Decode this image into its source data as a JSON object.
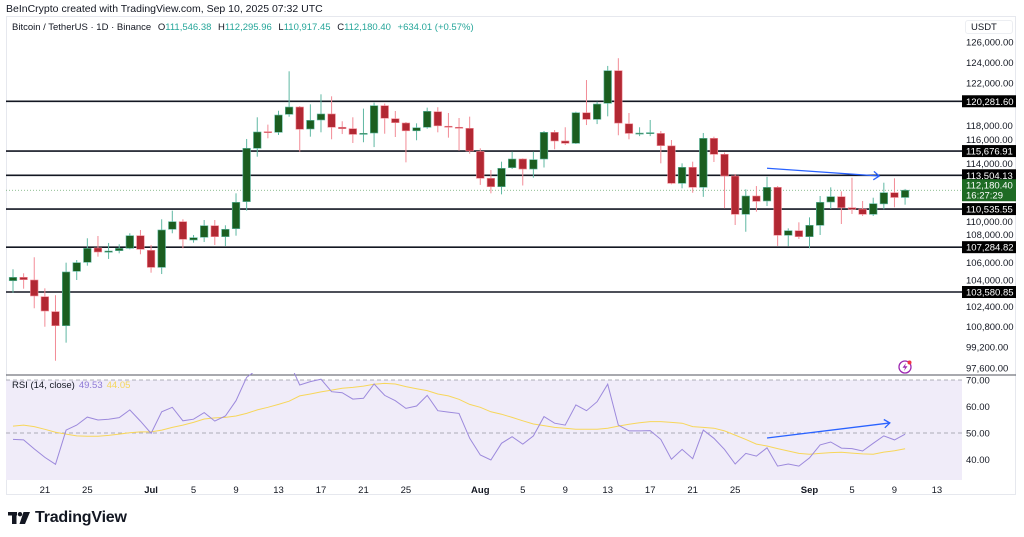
{
  "credit": "BeInCrypto created with TradingView.com, Sep 10, 2025 07:32 UTC",
  "legend": {
    "symbol": "Bitcoin / TetherUS · 1D · Binance",
    "o_label": "O",
    "o": "111,546.38",
    "h_label": "H",
    "h": "112,295.96",
    "l_label": "L",
    "l": "110,917.45",
    "c_label": "C",
    "c": "112,180.40",
    "change": "+634.01 (+0.57%)"
  },
  "currency": "USDT",
  "colors": {
    "up_body": "#1b5e20",
    "up_wick": "#5fb8a3",
    "down_body": "#b22833",
    "down_wick": "#f28b96",
    "rsi_line": "#9c89dc",
    "rsi_ma": "#f7d65a",
    "rsi_band": "#f0ecf9",
    "arrow": "#2962ff",
    "last_price": "#1e6b24",
    "level": "#131722",
    "alert_icon": "#9c27b0"
  },
  "price_axis": {
    "scale": "log",
    "ticks": [
      {
        "value": 126000,
        "label": "126,000.00"
      },
      {
        "value": 124000,
        "label": "124,000.00"
      },
      {
        "value": 122000,
        "label": "122,000.00"
      },
      {
        "value": 118000,
        "label": "118,000.00"
      },
      {
        "value": 116000,
        "label": "116,000.00"
      },
      {
        "value": 114000,
        "label": "114,000.00"
      },
      {
        "value": 110000,
        "label": "110,000.00"
      },
      {
        "value": 108000,
        "label": "108,000.00"
      },
      {
        "value": 106000,
        "label": "106,000.00"
      },
      {
        "value": 104000,
        "label": "104,000.00"
      },
      {
        "value": 102400,
        "label": "102,400.00"
      },
      {
        "value": 100800,
        "label": "100,800.00"
      },
      {
        "value": 99200,
        "label": "99,200.00"
      },
      {
        "value": 97600,
        "label": "97,600.00"
      }
    ]
  },
  "levels": [
    {
      "value": 120281.6,
      "label": "120,281.60"
    },
    {
      "value": 115676.91,
      "label": "115,676.91"
    },
    {
      "value": 113504.13,
      "label": "113,504.13"
    },
    {
      "value": 110535.55,
      "label": "110,535.55"
    },
    {
      "value": 107284.82,
      "label": "107,284.82"
    },
    {
      "value": 103580.85,
      "label": "103,580.85"
    }
  ],
  "last_price": {
    "value": 112180.4,
    "label": "112,180.40",
    "countdown": "16:27:29"
  },
  "x_axis": {
    "ticks": [
      {
        "date": "2025-06-21",
        "label": "21",
        "bold": false
      },
      {
        "date": "2025-06-25",
        "label": "25",
        "bold": false
      },
      {
        "date": "2025-07-01",
        "label": "Jul",
        "bold": true
      },
      {
        "date": "2025-07-05",
        "label": "5",
        "bold": false
      },
      {
        "date": "2025-07-09",
        "label": "9",
        "bold": false
      },
      {
        "date": "2025-07-13",
        "label": "13",
        "bold": false
      },
      {
        "date": "2025-07-17",
        "label": "17",
        "bold": false
      },
      {
        "date": "2025-07-21",
        "label": "21",
        "bold": false
      },
      {
        "date": "2025-07-25",
        "label": "25",
        "bold": false
      },
      {
        "date": "2025-08-01",
        "label": "Aug",
        "bold": true
      },
      {
        "date": "2025-08-05",
        "label": "5",
        "bold": false
      },
      {
        "date": "2025-08-09",
        "label": "9",
        "bold": false
      },
      {
        "date": "2025-08-13",
        "label": "13",
        "bold": false
      },
      {
        "date": "2025-08-17",
        "label": "17",
        "bold": false
      },
      {
        "date": "2025-08-21",
        "label": "21",
        "bold": false
      },
      {
        "date": "2025-08-25",
        "label": "25",
        "bold": false
      },
      {
        "date": "2025-09-01",
        "label": "Sep",
        "bold": true
      },
      {
        "date": "2025-09-05",
        "label": "5",
        "bold": false
      },
      {
        "date": "2025-09-09",
        "label": "9",
        "bold": false
      },
      {
        "date": "2025-09-13",
        "label": "13",
        "bold": false
      }
    ]
  },
  "rsi": {
    "title": "RSI (14, close)",
    "value": "49.53",
    "ma_value": "44.05",
    "axis_ticks": [
      {
        "value": 70,
        "label": "70.00"
      },
      {
        "value": 60,
        "label": "60.00"
      },
      {
        "value": 50,
        "label": "50.00"
      },
      {
        "value": 40,
        "label": "40.00"
      }
    ],
    "band": [
      30,
      70
    ],
    "dashed_levels": [
      70,
      50
    ],
    "values": [
      47.6,
      47.4,
      44.0,
      40.8,
      38.2,
      51.1,
      53.0,
      56.0,
      54.9,
      55.2,
      55.8,
      58.7,
      54.5,
      49.9,
      58.0,
      59.7,
      54.6,
      55.2,
      57.7,
      54.5,
      56.4,
      62.2,
      71.0,
      74,
      74,
      76,
      77,
      68.1,
      69.4,
      70.3,
      65.6,
      65.2,
      62.8,
      63.1,
      68.5,
      64.2,
      62.2,
      59.3,
      60.2,
      64.2,
      58.4,
      57.9,
      57.4,
      48.0,
      41.7,
      39.8,
      46.1,
      48.6,
      45.8,
      48.9,
      56.2,
      53.7,
      53.0,
      60.6,
      58.4,
      61.8,
      68.4,
      53.0,
      50.8,
      50.8,
      50.9,
      47.6,
      40.1,
      43.8,
      40.3,
      51.1,
      48.0,
      43.8,
      38.3,
      42.3,
      41.3,
      44.4,
      37.5,
      38.3,
      37.5,
      40.6,
      45.5,
      46.6,
      44.3,
      44.1,
      43.2,
      46.1,
      48.9,
      47.4,
      49.53
    ],
    "ma": [
      52.6,
      53.0,
      52.4,
      51.4,
      50.3,
      49.6,
      48.9,
      48.8,
      48.8,
      49.1,
      49.6,
      50.1,
      50.4,
      50.4,
      51.1,
      52.1,
      53.0,
      54.0,
      55.3,
      55.7,
      55.9,
      56.4,
      57.4,
      58.7,
      59.7,
      60.8,
      62.0,
      64.0,
      64.7,
      65.5,
      66.2,
      66.9,
      67.2,
      67.7,
      68.4,
      68.7,
      68.5,
      67.5,
      66.7,
      66.0,
      64.7,
      64.0,
      62.7,
      60.8,
      59.7,
      58.0,
      57.1,
      55.9,
      54.6,
      53.4,
      52.8,
      52.1,
      51.8,
      51.4,
      51.4,
      51.4,
      51.8,
      52.6,
      53.3,
      53.9,
      54.3,
      54.3,
      54.0,
      53.7,
      52.4,
      52.1,
      51.8,
      50.8,
      49.2,
      47.6,
      45.8,
      45.1,
      44.1,
      43.2,
      42.3,
      42.0,
      42.3,
      42.6,
      42.7,
      42.4,
      42.1,
      42.0,
      42.8,
      43.3,
      44.05
    ]
  },
  "arrows": [
    {
      "pane": "price",
      "from": {
        "date": "2025-08-28",
        "value": 114130
      },
      "to": {
        "date": "2025-09-07",
        "value": 113440
      }
    },
    {
      "pane": "rsi",
      "from": {
        "date": "2025-08-28",
        "value": 48.1
      },
      "to": {
        "date": "2025-09-08",
        "value": 53.8
      }
    }
  ],
  "logo_text": "TradingView",
  "chart_data": {
    "type": "candlestick",
    "title": "Bitcoin / TetherUS · 1D · Binance",
    "ylim": [
      97000,
      127000
    ],
    "yscale": "log",
    "fields": [
      "date",
      "open",
      "high",
      "low",
      "close"
    ],
    "candles": [
      [
        "2025-06-18",
        104500,
        105440,
        103520,
        104780
      ],
      [
        "2025-06-19",
        104780,
        105110,
        103850,
        104585
      ],
      [
        "2025-06-20",
        104560,
        106440,
        102270,
        103260
      ],
      [
        "2025-06-21",
        103200,
        103880,
        100800,
        102050
      ],
      [
        "2025-06-22",
        102000,
        103320,
        98150,
        100880
      ],
      [
        "2025-06-23",
        100880,
        105990,
        99550,
        105220
      ],
      [
        "2025-06-24",
        105275,
        106210,
        104560,
        105990
      ],
      [
        "2025-06-25",
        106020,
        108035,
        105740,
        107190
      ],
      [
        "2025-06-26",
        107220,
        108230,
        106490,
        106880
      ],
      [
        "2025-06-27",
        106860,
        107640,
        106300,
        106960
      ],
      [
        "2025-06-28",
        106990,
        107530,
        106770,
        107190
      ],
      [
        "2025-06-29",
        107190,
        108460,
        107105,
        108255
      ],
      [
        "2025-06-30",
        108255,
        108740,
        106690,
        107105
      ],
      [
        "2025-07-01",
        107020,
        107470,
        105160,
        105600
      ],
      [
        "2025-07-02",
        105600,
        109655,
        105050,
        108740
      ],
      [
        "2025-07-03",
        108800,
        110400,
        108460,
        109450
      ],
      [
        "2025-07-04",
        109450,
        109655,
        107190,
        107950
      ],
      [
        "2025-07-05",
        107890,
        108315,
        107665,
        108085
      ],
      [
        "2025-07-06",
        108120,
        109594,
        107720,
        109105
      ],
      [
        "2025-07-07",
        109105,
        109594,
        107470,
        108170
      ],
      [
        "2025-07-08",
        108170,
        109140,
        107385,
        108800
      ],
      [
        "2025-07-09",
        108850,
        111910,
        108255,
        111125
      ],
      [
        "2025-07-10",
        111180,
        116780,
        110400,
        115930
      ],
      [
        "2025-07-11",
        115930,
        118780,
        115170,
        117420
      ],
      [
        "2025-07-12",
        117450,
        118100,
        116840,
        117360
      ],
      [
        "2025-07-13",
        117390,
        119395,
        117140,
        118990
      ],
      [
        "2025-07-14",
        119060,
        123140,
        118830,
        119740
      ],
      [
        "2025-07-15",
        119740,
        119835,
        115620,
        117670
      ],
      [
        "2025-07-16",
        117695,
        119995,
        116990,
        118500
      ],
      [
        "2025-07-17",
        118530,
        120940,
        117390,
        119090
      ],
      [
        "2025-07-18",
        119090,
        120750,
        116750,
        117855
      ],
      [
        "2025-07-19",
        117855,
        118410,
        117230,
        117725
      ],
      [
        "2025-07-20",
        117725,
        118780,
        116410,
        117200
      ],
      [
        "2025-07-21",
        117200,
        119590,
        116480,
        117295
      ],
      [
        "2025-07-22",
        117325,
        120150,
        116040,
        119865
      ],
      [
        "2025-07-23",
        119865,
        120060,
        117260,
        118690
      ],
      [
        "2025-07-24",
        118650,
        119370,
        116960,
        118280
      ],
      [
        "2025-07-25",
        118250,
        118340,
        114660,
        117530
      ],
      [
        "2025-07-26",
        117530,
        118220,
        116660,
        117810
      ],
      [
        "2025-07-27",
        117855,
        119680,
        117720,
        119340
      ],
      [
        "2025-07-28",
        119300,
        119720,
        117390,
        117990
      ],
      [
        "2025-07-29",
        117950,
        119180,
        116900,
        117880
      ],
      [
        "2025-07-30",
        117855,
        118715,
        115710,
        117760
      ],
      [
        "2025-07-31",
        117760,
        118840,
        115440,
        115685
      ],
      [
        "2025-08-01",
        115640,
        115930,
        112650,
        113235
      ],
      [
        "2025-08-02",
        113235,
        113970,
        111910,
        112490
      ],
      [
        "2025-08-03",
        112490,
        114720,
        111820,
        114125
      ],
      [
        "2025-08-04",
        114180,
        115620,
        114060,
        114960
      ],
      [
        "2025-08-05",
        114960,
        115020,
        112600,
        114060
      ],
      [
        "2025-08-06",
        114060,
        115620,
        113290,
        114900
      ],
      [
        "2025-08-07",
        114960,
        117510,
        114200,
        117390
      ],
      [
        "2025-08-08",
        117390,
        117600,
        115840,
        116595
      ],
      [
        "2025-08-09",
        116595,
        117855,
        116230,
        116385
      ],
      [
        "2025-08-10",
        116385,
        119300,
        116320,
        119205
      ],
      [
        "2025-08-11",
        119205,
        122300,
        118060,
        118590
      ],
      [
        "2025-08-12",
        118590,
        120240,
        118150,
        120020
      ],
      [
        "2025-08-13",
        120090,
        123660,
        118870,
        123200
      ],
      [
        "2025-08-14",
        123200,
        124410,
        117120,
        118240
      ],
      [
        "2025-08-15",
        118180,
        119180,
        116750,
        117290
      ],
      [
        "2025-08-16",
        117260,
        117855,
        117040,
        117320
      ],
      [
        "2025-08-17",
        117320,
        118530,
        117040,
        117360
      ],
      [
        "2025-08-18",
        117290,
        117510,
        114570,
        116170
      ],
      [
        "2025-08-19",
        116150,
        116685,
        112700,
        112790
      ],
      [
        "2025-08-20",
        112790,
        114570,
        112350,
        114215
      ],
      [
        "2025-08-21",
        114215,
        114720,
        111960,
        112440
      ],
      [
        "2025-08-22",
        112440,
        117330,
        111600,
        116840
      ],
      [
        "2025-08-23",
        116840,
        116990,
        114690,
        115385
      ],
      [
        "2025-08-24",
        115385,
        115540,
        110600,
        113440
      ],
      [
        "2025-08-25",
        113440,
        113620,
        109165,
        110085
      ],
      [
        "2025-08-26",
        110085,
        112260,
        108590,
        111675
      ],
      [
        "2025-08-27",
        111675,
        112550,
        110310,
        111210
      ],
      [
        "2025-08-28",
        111240,
        113370,
        110800,
        112435
      ],
      [
        "2025-08-29",
        112435,
        112550,
        107390,
        108290
      ],
      [
        "2025-08-30",
        108290,
        108880,
        107360,
        108680
      ],
      [
        "2025-08-31",
        108680,
        109395,
        107975,
        108170
      ],
      [
        "2025-09-01",
        108170,
        109825,
        107190,
        109140
      ],
      [
        "2025-09-02",
        109140,
        111675,
        108315,
        111125
      ],
      [
        "2025-09-03",
        111150,
        112435,
        110545,
        111615
      ],
      [
        "2025-09-04",
        111615,
        112085,
        109250,
        110655
      ],
      [
        "2025-09-05",
        110655,
        113285,
        110110,
        110515
      ],
      [
        "2025-09-06",
        110545,
        111240,
        109940,
        110085
      ],
      [
        "2025-09-07",
        110085,
        111525,
        109940,
        111005
      ],
      [
        "2025-09-08",
        110990,
        112845,
        110520,
        111965
      ],
      [
        "2025-09-09",
        111965,
        113235,
        110690,
        111546
      ],
      [
        "2025-09-10",
        111546.38,
        112295.96,
        110917.45,
        112180.4
      ]
    ]
  }
}
